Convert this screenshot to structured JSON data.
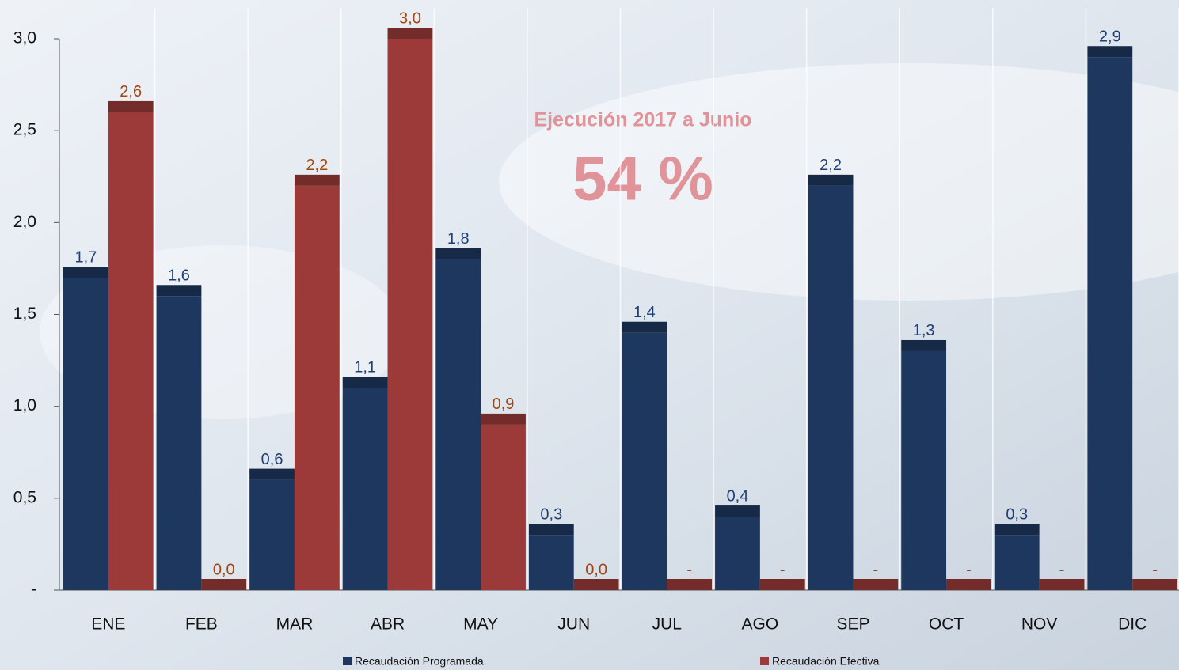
{
  "chart_data": {
    "type": "bar",
    "categories": [
      "ENE",
      "FEB",
      "MAR",
      "ABR",
      "MAY",
      "JUN",
      "JUL",
      "AGO",
      "SEP",
      "OCT",
      "NOV",
      "DIC"
    ],
    "series": [
      {
        "name": "Recaudación Programada",
        "color": "#1d375e",
        "label_color": "#1f3f73",
        "values": [
          1.7,
          1.6,
          0.6,
          1.1,
          1.8,
          0.3,
          1.4,
          0.4,
          2.2,
          1.3,
          0.3,
          2.9
        ],
        "value_labels": [
          "1,7",
          "1,6",
          "0,6",
          "1,1",
          "1,8",
          "0,3",
          "1,4",
          "0,4",
          "2,2",
          "1,3",
          "0,3",
          "2,9"
        ]
      },
      {
        "name": "Recaudación Efectiva",
        "color": "#9b3a38",
        "label_color": "#a3450f",
        "values": [
          2.6,
          0,
          2.2,
          3.0,
          0.9,
          0,
          0,
          0,
          0,
          0,
          0,
          0
        ],
        "value_labels": [
          "2,6",
          "0,0",
          "2,2",
          "3,0",
          "0,9",
          "0,0",
          "-",
          "-",
          "-",
          "-",
          "-",
          "-"
        ]
      }
    ],
    "ylim": [
      0,
      3.0
    ],
    "yticks": [
      {
        "value": 0,
        "label": "-"
      },
      {
        "value": 0.5,
        "label": "0,5"
      },
      {
        "value": 1.0,
        "label": "1,0"
      },
      {
        "value": 1.5,
        "label": "1,5"
      },
      {
        "value": 2.0,
        "label": "2,0"
      },
      {
        "value": 2.5,
        "label": "2,5"
      },
      {
        "value": 3.0,
        "label": "3,0"
      }
    ],
    "annotations": [
      "Ejecución 2017 a Junio",
      "54 %"
    ]
  }
}
